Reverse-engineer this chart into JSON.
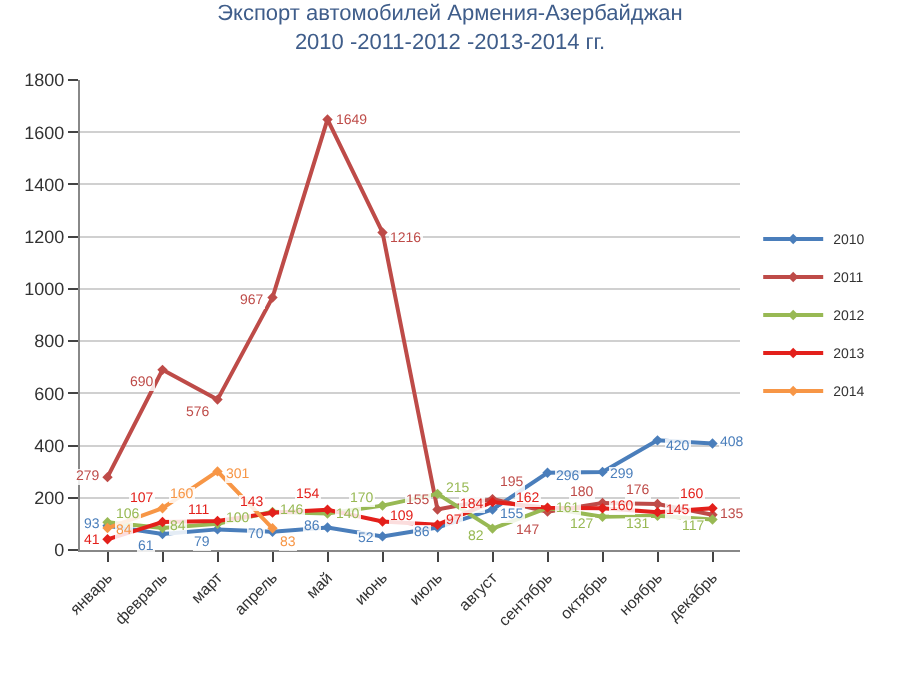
{
  "chart_data": {
    "type": "line",
    "title": "Экспорт автомобилей Армения-Азербайджан\n2010 -2011-2012 -2013-2014 гг.",
    "categories": [
      "январь",
      "февраль",
      "март",
      "апрель",
      "май",
      "июнь",
      "июль",
      "август",
      "сентябрь",
      "октябрь",
      "ноябрь",
      "декабрь"
    ],
    "series": [
      {
        "name": "2010",
        "color": "#4a7ebb",
        "values": [
          93,
          61,
          79,
          70,
          86,
          52,
          86,
          155,
          296,
          299,
          420,
          408
        ]
      },
      {
        "name": "2011",
        "color": "#be4b48",
        "values": [
          279,
          690,
          576,
          967,
          1649,
          1216,
          155,
          195,
          147,
          180,
          176,
          135
        ]
      },
      {
        "name": "2012",
        "color": "#98b954",
        "values": [
          106,
          84,
          100,
          146,
          140,
          170,
          215,
          82,
          161,
          127,
          131,
          117
        ]
      },
      {
        "name": "2013",
        "color": "#e3201b",
        "values": [
          41,
          107,
          111,
          143,
          154,
          109,
          97,
          184,
          162,
          160,
          145,
          160
        ]
      },
      {
        "name": "2014",
        "color": "#f79646",
        "values": [
          84,
          160,
          301,
          83,
          null,
          null,
          null,
          null,
          null,
          null,
          null,
          null
        ]
      }
    ],
    "ylim": [
      0,
      1800
    ],
    "yticks": [
      0,
      200,
      400,
      600,
      800,
      1000,
      1200,
      1400,
      1600,
      1800
    ],
    "grid": "y",
    "legend": "right",
    "marker": "diamond",
    "line_style": "solid",
    "data_labels": true
  }
}
